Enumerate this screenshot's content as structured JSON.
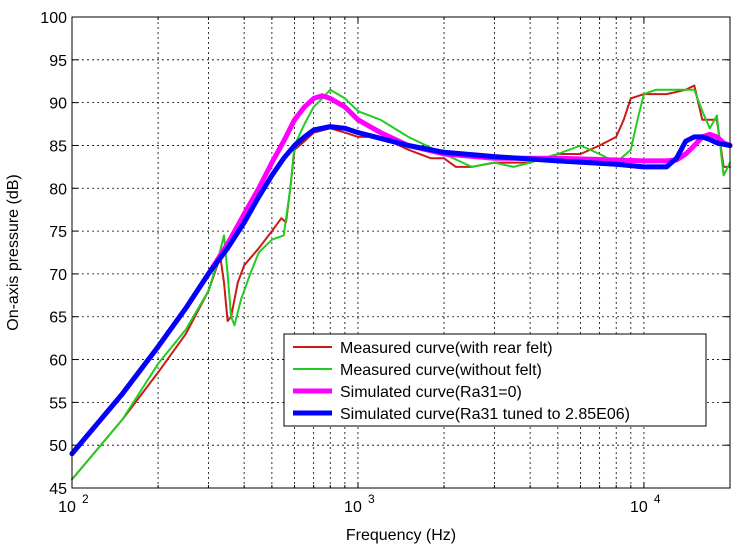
{
  "chart_data": {
    "type": "line",
    "title": "",
    "xlabel": "Frequency (Hz)",
    "ylabel": "On-axis pressure (dB)",
    "x_scale": "log",
    "xlim": [
      100,
      20000
    ],
    "ylim": [
      45,
      100
    ],
    "grid": true,
    "legend_position": "bottom-center",
    "x_ticks": [
      {
        "value": 100,
        "base": "10",
        "exp": "2"
      },
      {
        "value": 1000,
        "base": "10",
        "exp": "3"
      },
      {
        "value": 10000,
        "base": "10",
        "exp": "4"
      }
    ],
    "y_ticks": [
      45,
      50,
      55,
      60,
      65,
      70,
      75,
      80,
      85,
      90,
      95,
      100
    ],
    "y_tick_labels": [
      "45",
      "50",
      "55",
      "60",
      "65",
      "70",
      "75",
      "80",
      "85",
      "90",
      "95",
      "100"
    ],
    "series": [
      {
        "name": "Measured curve(with rear felt)",
        "color": "#cc1a1a",
        "width": 2,
        "points": [
          [
            100,
            46
          ],
          [
            150,
            53
          ],
          [
            200,
            58.5
          ],
          [
            250,
            63
          ],
          [
            300,
            68
          ],
          [
            330,
            72
          ],
          [
            340,
            69
          ],
          [
            350,
            64.5
          ],
          [
            360,
            65
          ],
          [
            380,
            69
          ],
          [
            400,
            71
          ],
          [
            450,
            73
          ],
          [
            500,
            75
          ],
          [
            540,
            76.5
          ],
          [
            560,
            76
          ],
          [
            580,
            80
          ],
          [
            600,
            84.5
          ],
          [
            650,
            85.5
          ],
          [
            700,
            86.5
          ],
          [
            800,
            87
          ],
          [
            900,
            86.5
          ],
          [
            1000,
            86
          ],
          [
            1200,
            86
          ],
          [
            1500,
            84.5
          ],
          [
            1800,
            83.5
          ],
          [
            2000,
            83.5
          ],
          [
            2200,
            82.5
          ],
          [
            2500,
            82.5
          ],
          [
            3000,
            83
          ],
          [
            4000,
            83
          ],
          [
            5000,
            84
          ],
          [
            6000,
            84
          ],
          [
            7000,
            85
          ],
          [
            8000,
            86
          ],
          [
            8500,
            88
          ],
          [
            9000,
            90.5
          ],
          [
            10000,
            91
          ],
          [
            12000,
            91
          ],
          [
            14000,
            91.5
          ],
          [
            15000,
            92
          ],
          [
            16000,
            88
          ],
          [
            18000,
            88
          ],
          [
            19000,
            82.5
          ],
          [
            20000,
            82.5
          ]
        ]
      },
      {
        "name": "Measured curve(without felt)",
        "color": "#22cc22",
        "width": 2,
        "points": [
          [
            100,
            46
          ],
          [
            150,
            53
          ],
          [
            200,
            59.5
          ],
          [
            250,
            63.5
          ],
          [
            300,
            68
          ],
          [
            320,
            71
          ],
          [
            340,
            74.5
          ],
          [
            350,
            70
          ],
          [
            360,
            65
          ],
          [
            370,
            64
          ],
          [
            390,
            67
          ],
          [
            420,
            70
          ],
          [
            450,
            72.5
          ],
          [
            500,
            74
          ],
          [
            550,
            74.5
          ],
          [
            580,
            80
          ],
          [
            600,
            85
          ],
          [
            650,
            87.5
          ],
          [
            700,
            89.5
          ],
          [
            750,
            90.5
          ],
          [
            800,
            91.5
          ],
          [
            900,
            90.5
          ],
          [
            1000,
            89
          ],
          [
            1200,
            88
          ],
          [
            1500,
            86
          ],
          [
            2000,
            84
          ],
          [
            2500,
            82.5
          ],
          [
            3000,
            83
          ],
          [
            3500,
            82.5
          ],
          [
            4000,
            83
          ],
          [
            5000,
            84
          ],
          [
            6000,
            85
          ],
          [
            7000,
            84
          ],
          [
            8000,
            83
          ],
          [
            9000,
            84.5
          ],
          [
            9500,
            88
          ],
          [
            10000,
            91
          ],
          [
            11000,
            91.5
          ],
          [
            13000,
            91.5
          ],
          [
            15000,
            91.5
          ],
          [
            16000,
            89
          ],
          [
            17000,
            87
          ],
          [
            18000,
            88.5
          ],
          [
            19000,
            81.5
          ],
          [
            20000,
            83
          ]
        ]
      },
      {
        "name": "Simulated curve(Ra31=0)",
        "color": "#ff00ff",
        "width": 5,
        "points": [
          [
            100,
            49
          ],
          [
            150,
            56
          ],
          [
            200,
            61.5
          ],
          [
            250,
            66
          ],
          [
            300,
            70
          ],
          [
            350,
            73.5
          ],
          [
            400,
            77
          ],
          [
            450,
            80
          ],
          [
            500,
            83
          ],
          [
            550,
            85.5
          ],
          [
            600,
            88
          ],
          [
            650,
            89.5
          ],
          [
            700,
            90.5
          ],
          [
            750,
            90.8
          ],
          [
            800,
            90.5
          ],
          [
            900,
            89.5
          ],
          [
            1000,
            88
          ],
          [
            1200,
            86.5
          ],
          [
            1500,
            85
          ],
          [
            2000,
            84
          ],
          [
            3000,
            83.5
          ],
          [
            5000,
            83.5
          ],
          [
            8000,
            83.3
          ],
          [
            10000,
            83.2
          ],
          [
            12000,
            83.2
          ],
          [
            13000,
            83.3
          ],
          [
            14000,
            84
          ],
          [
            15000,
            85
          ],
          [
            16000,
            86
          ],
          [
            17000,
            86.3
          ],
          [
            18000,
            86
          ],
          [
            19000,
            85.3
          ],
          [
            20000,
            85
          ]
        ]
      },
      {
        "name": "Simulated curve(Ra31 tuned to 2.85E06)",
        "color": "#0000ff",
        "width": 5,
        "points": [
          [
            100,
            49
          ],
          [
            150,
            56
          ],
          [
            200,
            61.5
          ],
          [
            250,
            66
          ],
          [
            300,
            70
          ],
          [
            350,
            73
          ],
          [
            400,
            76
          ],
          [
            450,
            79
          ],
          [
            500,
            81.5
          ],
          [
            550,
            83.5
          ],
          [
            600,
            85
          ],
          [
            650,
            86
          ],
          [
            700,
            86.8
          ],
          [
            800,
            87.2
          ],
          [
            900,
            87
          ],
          [
            1000,
            86.5
          ],
          [
            1500,
            85
          ],
          [
            2000,
            84.2
          ],
          [
            3000,
            83.7
          ],
          [
            5000,
            83.2
          ],
          [
            8000,
            82.8
          ],
          [
            10000,
            82.5
          ],
          [
            12000,
            82.5
          ],
          [
            13000,
            83.5
          ],
          [
            14000,
            85.5
          ],
          [
            15000,
            86
          ],
          [
            16000,
            86
          ],
          [
            17000,
            85.7
          ],
          [
            18000,
            85.3
          ],
          [
            20000,
            85
          ]
        ]
      }
    ]
  }
}
